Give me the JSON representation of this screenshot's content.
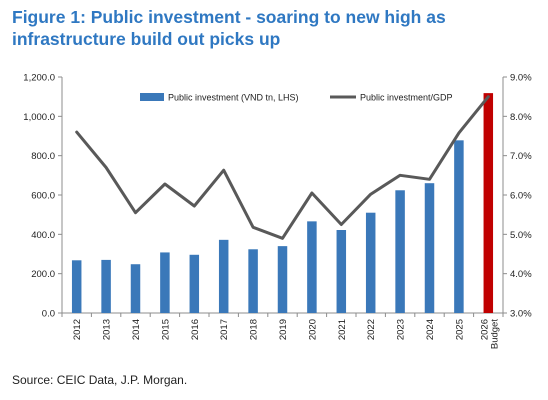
{
  "figure": {
    "title": "Figure 1: Public investment - soaring to new high as infrastructure build out picks up",
    "source": "Source: CEIC Data, J.P. Morgan."
  },
  "chart_data": {
    "type": "bar+line",
    "categories": [
      "2012",
      "2013",
      "2014",
      "2015",
      "2016",
      "2017",
      "2018",
      "2019",
      "2020",
      "2021",
      "2022",
      "2023",
      "2024",
      "2025",
      "2026 Budget"
    ],
    "series": [
      {
        "name": "Public investment (VND tn, LHS)",
        "type": "bar",
        "axis": "left",
        "color": "#3a78b9",
        "highlight_color": "#c00000",
        "highlight_index": 14,
        "values": [
          268,
          270,
          248,
          308,
          296,
          372,
          324,
          340,
          466,
          422,
          510,
          624,
          660,
          878,
          1118
        ]
      },
      {
        "name": "Public investment/GDP",
        "type": "line",
        "axis": "right",
        "color": "#595959",
        "values": [
          7.6,
          6.7,
          5.55,
          6.28,
          5.72,
          6.63,
          5.18,
          4.9,
          6.05,
          5.25,
          6.02,
          6.5,
          6.4,
          7.58,
          8.5
        ]
      }
    ],
    "y_left": {
      "ylim": [
        0,
        1200
      ],
      "ticks": [
        "0.0",
        "200.0",
        "400.0",
        "600.0",
        "800.0",
        "1,000.0",
        "1,200.0"
      ]
    },
    "y_right": {
      "ylim": [
        3.0,
        9.0
      ],
      "ticks": [
        "3.0%",
        "4.0%",
        "5.0%",
        "6.0%",
        "7.0%",
        "8.0%",
        "9.0%"
      ]
    },
    "grid": false,
    "legend": "top"
  }
}
